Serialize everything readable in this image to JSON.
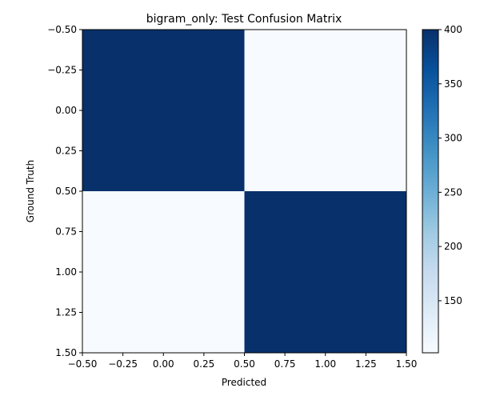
{
  "chart_data": {
    "type": "heatmap",
    "title": "bigram_only: Test Confusion Matrix",
    "xlabel": "Predicted",
    "ylabel": "Ground Truth",
    "xlim": [
      -0.5,
      1.5
    ],
    "ylim": [
      1.5,
      -0.5
    ],
    "x_tick_values": [
      -0.5,
      -0.25,
      0.0,
      0.25,
      0.5,
      0.75,
      1.0,
      1.25,
      1.5
    ],
    "x_tick_labels": [
      "−0.50",
      "−0.25",
      "0.00",
      "0.25",
      "0.50",
      "0.75",
      "1.00",
      "1.25",
      "1.50"
    ],
    "y_tick_values": [
      -0.5,
      -0.25,
      0.0,
      0.25,
      0.5,
      0.75,
      1.0,
      1.25,
      1.5
    ],
    "y_tick_labels": [
      "−0.50",
      "−0.25",
      "0.00",
      "0.25",
      "0.50",
      "0.75",
      "1.00",
      "1.25",
      "1.50"
    ],
    "matrix": [
      [
        400,
        102
      ],
      [
        102,
        400
      ]
    ],
    "colormap": "Blues",
    "color_low": "#f7fbff",
    "color_high": "#08306b",
    "colorbar": {
      "range": [
        102,
        400
      ],
      "tick_values": [
        150,
        200,
        250,
        300,
        350,
        400
      ],
      "tick_labels": [
        "150",
        "200",
        "250",
        "300",
        "350",
        "400"
      ]
    },
    "grid": false,
    "legend": "colorbar-right"
  }
}
